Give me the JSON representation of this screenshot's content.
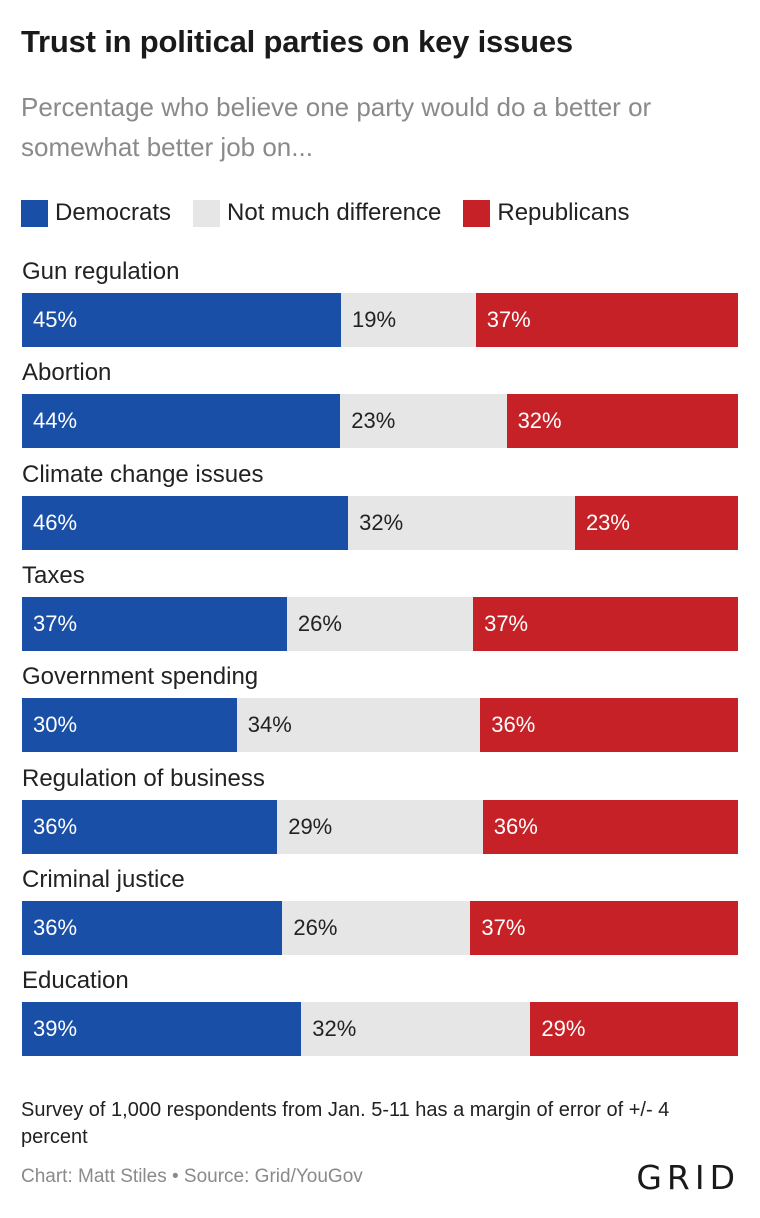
{
  "title": "Trust in political parties on key issues",
  "subtitle": "Percentage who believe one party would do a better or somewhat better job on...",
  "note": "Survey of 1,000 respondents from Jan. 5-11 has a margin of error of +/- 4 percent",
  "credit": "Chart: Matt Stiles • Source: Grid/YouGov",
  "logo": "GRID",
  "colors": {
    "democrats": "#1a4fa8",
    "neutral": "#e6e6e6",
    "republicans": "#c52126"
  },
  "chart_data": {
    "type": "bar",
    "orientation": "horizontal",
    "stacked": true,
    "value_suffix": "%",
    "categories": [
      "Gun regulation",
      "Abortion",
      "Climate change issues",
      "Taxes",
      "Government spending",
      "Regulation of business",
      "Criminal justice",
      "Education"
    ],
    "series": [
      {
        "name": "Democrats",
        "color": "#1a4fa8",
        "values": [
          45,
          44,
          46,
          37,
          30,
          36,
          36,
          39
        ]
      },
      {
        "name": "Not much difference",
        "color": "#e6e6e6",
        "values": [
          19,
          23,
          32,
          26,
          34,
          29,
          26,
          32
        ]
      },
      {
        "name": "Republicans",
        "color": "#c52126",
        "values": [
          37,
          32,
          23,
          37,
          36,
          36,
          37,
          29
        ]
      }
    ],
    "legend_position": "top-left",
    "grid": false
  }
}
